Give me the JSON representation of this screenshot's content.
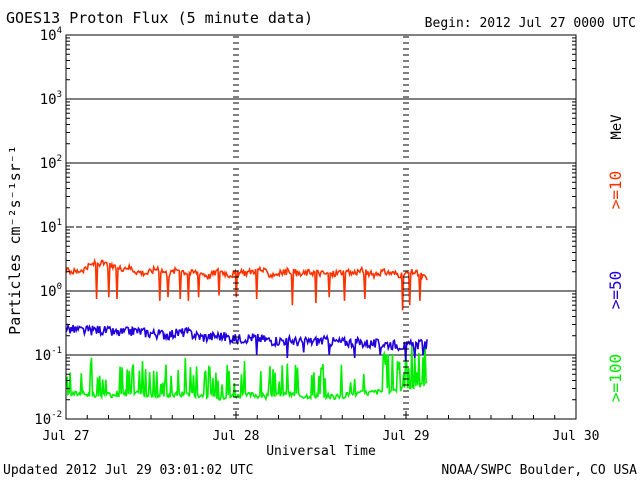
{
  "title": "GOES13 Proton Flux (5 minute data)",
  "begin": "Begin: 2012 Jul 27 0000 UTC",
  "updated": "Updated 2012 Jul 29 03:01:02 UTC",
  "credit": "NOAA/SWPC Boulder, CO USA",
  "chart_data": {
    "type": "line",
    "title": "GOES13 Proton Flux (5 minute data)",
    "xlabel": "Universal Time",
    "ylabel": "Particles cm⁻²s⁻¹sr⁻¹",
    "y_scale": "log",
    "ylim": [
      0.01,
      10000
    ],
    "xlim_days": [
      0,
      3
    ],
    "y_ticks": [
      {
        "base": "10",
        "exp": "-2",
        "value": 0.01
      },
      {
        "base": "10",
        "exp": "-1",
        "value": 0.1
      },
      {
        "base": "10",
        "exp": "0",
        "value": 1
      },
      {
        "base": "10",
        "exp": "1",
        "value": 10
      },
      {
        "base": "10",
        "exp": "2",
        "value": 100
      },
      {
        "base": "10",
        "exp": "3",
        "value": 1000
      },
      {
        "base": "10",
        "exp": "4",
        "value": 10000
      }
    ],
    "x_ticks": [
      {
        "label": "Jul 27",
        "day": 0
      },
      {
        "label": "Jul 28",
        "day": 1
      },
      {
        "label": "Jul 29",
        "day": 2
      },
      {
        "label": "Jul 30",
        "day": 3
      }
    ],
    "threshold_value": 10,
    "data_end_day": 2.126,
    "unit_label": "MeV",
    "series": [
      {
        "name": ">=10",
        "color": "#ff3300",
        "x_days": [
          0.0,
          0.06,
          0.12,
          0.18,
          0.24,
          0.3,
          0.36,
          0.42,
          0.48,
          0.54,
          0.6,
          0.66,
          0.72,
          0.78,
          0.84,
          0.9,
          0.96,
          1.02,
          1.08,
          1.14,
          1.2,
          1.26,
          1.32,
          1.38,
          1.44,
          1.5,
          1.56,
          1.62,
          1.68,
          1.74,
          1.8,
          1.86,
          1.92,
          1.98,
          2.04,
          2.1,
          2.126
        ],
        "values": [
          2.1,
          2.0,
          2.3,
          2.8,
          2.6,
          2.2,
          2.4,
          2.0,
          1.9,
          2.3,
          1.8,
          2.2,
          1.9,
          2.0,
          1.7,
          2.1,
          1.8,
          1.9,
          2.0,
          2.2,
          1.8,
          1.9,
          2.1,
          1.8,
          2.0,
          1.9,
          1.8,
          2.0,
          1.9,
          2.1,
          1.8,
          2.0,
          1.9,
          1.8,
          2.0,
          1.7,
          1.5
        ],
        "dips": [
          [
            0.18,
            0.75
          ],
          [
            0.25,
            0.8
          ],
          [
            0.3,
            0.75
          ],
          [
            0.55,
            0.7
          ],
          [
            0.6,
            0.8
          ],
          [
            0.67,
            0.75
          ],
          [
            0.72,
            0.7
          ],
          [
            0.78,
            0.8
          ],
          [
            0.9,
            0.85
          ],
          [
            1.0,
            0.8
          ],
          [
            1.12,
            0.75
          ],
          [
            1.33,
            0.6
          ],
          [
            1.47,
            0.65
          ],
          [
            1.55,
            0.8
          ],
          [
            1.64,
            0.7
          ],
          [
            1.76,
            0.75
          ],
          [
            1.98,
            0.5
          ],
          [
            2.02,
            0.6
          ],
          [
            2.08,
            0.7
          ]
        ]
      },
      {
        "name": ">=50",
        "color": "#2200dd",
        "x_days": [
          0.0,
          0.1,
          0.2,
          0.3,
          0.4,
          0.5,
          0.6,
          0.7,
          0.8,
          0.9,
          1.0,
          1.1,
          1.2,
          1.3,
          1.4,
          1.5,
          1.6,
          1.7,
          1.8,
          1.9,
          2.0,
          2.1,
          2.126
        ],
        "values": [
          0.26,
          0.24,
          0.25,
          0.22,
          0.24,
          0.22,
          0.21,
          0.23,
          0.19,
          0.2,
          0.18,
          0.19,
          0.17,
          0.17,
          0.16,
          0.17,
          0.16,
          0.16,
          0.15,
          0.15,
          0.14,
          0.15,
          0.15
        ],
        "dips": [
          [
            1.12,
            0.1
          ],
          [
            1.3,
            0.09
          ],
          [
            1.4,
            0.11
          ],
          [
            1.55,
            0.1
          ],
          [
            1.7,
            0.09
          ],
          [
            1.85,
            0.1
          ],
          [
            2.0,
            0.08
          ],
          [
            2.05,
            0.09
          ],
          [
            2.1,
            0.1
          ]
        ]
      },
      {
        "name": ">=100",
        "color": "#00ee00",
        "x_days": [
          0.0,
          0.1,
          0.2,
          0.3,
          0.4,
          0.5,
          0.6,
          0.7,
          0.8,
          0.9,
          1.0,
          1.1,
          1.2,
          1.3,
          1.4,
          1.5,
          1.6,
          1.7,
          1.8,
          1.9,
          2.0,
          2.1,
          2.126
        ],
        "values": [
          0.025,
          0.025,
          0.022,
          0.025,
          0.025,
          0.024,
          0.023,
          0.025,
          0.024,
          0.022,
          0.023,
          0.024,
          0.022,
          0.025,
          0.023,
          0.024,
          0.022,
          0.025,
          0.026,
          0.028,
          0.03,
          0.035,
          0.04
        ],
        "spikes": [
          [
            0.15,
            0.09
          ],
          [
            0.32,
            0.1
          ],
          [
            0.45,
            0.08
          ],
          [
            0.58,
            0.1
          ],
          [
            0.7,
            0.09
          ],
          [
            0.82,
            0.08
          ],
          [
            0.95,
            0.07
          ],
          [
            1.05,
            0.08
          ],
          [
            1.22,
            0.06
          ],
          [
            1.35,
            0.07
          ],
          [
            1.5,
            0.08
          ],
          [
            1.62,
            0.07
          ],
          [
            1.75,
            0.08
          ],
          [
            1.88,
            0.07
          ],
          [
            1.95,
            0.08
          ],
          [
            2.05,
            0.09
          ],
          [
            2.1,
            0.08
          ]
        ]
      }
    ]
  }
}
